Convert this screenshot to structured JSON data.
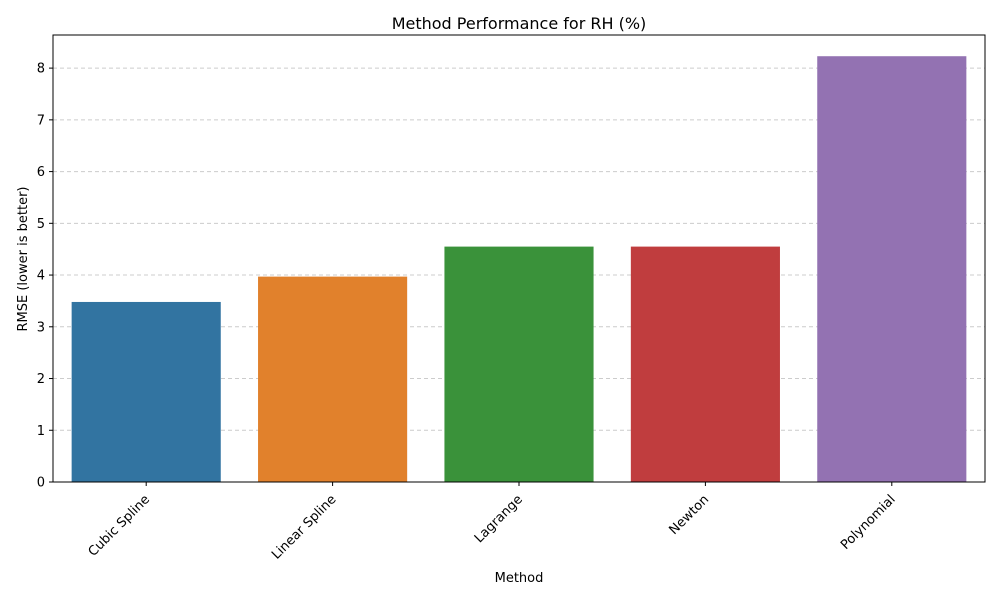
{
  "chart_data": {
    "type": "bar",
    "title": "Method Performance for RH (%)",
    "xlabel": "Method",
    "ylabel": "RMSE (lower is better)",
    "categories": [
      "Cubic Spline",
      "Linear Spline",
      "Lagrange",
      "Newton",
      "Polynomial"
    ],
    "values": [
      3.48,
      3.97,
      4.55,
      4.55,
      8.23
    ],
    "colors": [
      "#3274a1",
      "#e1812c",
      "#3a923a",
      "#c03d3e",
      "#9372b2"
    ],
    "ylim": [
      0,
      8.64
    ],
    "yticks": [
      0,
      1,
      2,
      3,
      4,
      5,
      6,
      7,
      8
    ],
    "grid": "y-dashed",
    "legend": "none"
  }
}
